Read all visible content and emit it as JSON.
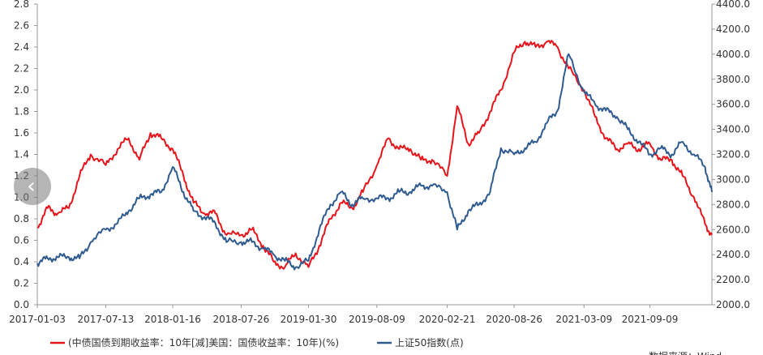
{
  "chart_data": {
    "type": "line",
    "title": "",
    "x_tick_labels": [
      "2017-01-03",
      "2017-07-13",
      "2018-01-16",
      "2018-07-26",
      "2019-01-30",
      "2019-08-09",
      "2020-02-21",
      "2020-08-26",
      "2021-03-09",
      "2021-09-09"
    ],
    "y_left": {
      "ylim": [
        0,
        2.8
      ],
      "ticks": [
        "0.0",
        "0.2",
        "0.4",
        "0.6",
        "0.8",
        "1.0",
        "1.2",
        "1.4",
        "1.6",
        "1.8",
        "2.0",
        "2.2",
        "2.4",
        "2.6",
        "2.8"
      ]
    },
    "y_right": {
      "ylim": [
        2000,
        4400
      ],
      "ticks": [
        "2000.0",
        "2200.0",
        "2400.0",
        "2600.0",
        "2800.0",
        "3000.0",
        "3200.0",
        "3400.0",
        "3600.0",
        "3800.0",
        "4000.0",
        "4200.0",
        "4400.0"
      ]
    },
    "series": [
      {
        "name": "(中债国债到期收益率：10年[减]美国：国债收益率：10年)(%)",
        "axis": "left",
        "color": "#e8141b",
        "x": [
          "2017-01-03",
          "2017-02-01",
          "2017-03-01",
          "2017-04-01",
          "2017-05-01",
          "2017-06-01",
          "2017-07-13",
          "2017-08-15",
          "2017-09-15",
          "2017-10-15",
          "2017-11-15",
          "2017-12-15",
          "2018-01-16",
          "2018-02-15",
          "2018-03-15",
          "2018-04-15",
          "2018-05-15",
          "2018-06-15",
          "2018-07-26",
          "2018-08-25",
          "2018-09-25",
          "2018-10-25",
          "2018-11-25",
          "2018-12-25",
          "2019-01-30",
          "2019-03-01",
          "2019-04-01",
          "2019-05-01",
          "2019-06-01",
          "2019-07-01",
          "2019-08-09",
          "2019-09-10",
          "2019-10-10",
          "2019-11-10",
          "2019-12-10",
          "2020-01-10",
          "2020-02-21",
          "2020-03-20",
          "2020-04-20",
          "2020-05-20",
          "2020-06-20",
          "2020-07-20",
          "2020-08-26",
          "2020-09-25",
          "2020-10-25",
          "2020-11-25",
          "2020-12-25",
          "2021-01-25",
          "2021-03-09",
          "2021-04-09",
          "2021-05-09",
          "2021-06-09",
          "2021-07-09",
          "2021-08-09",
          "2021-09-09",
          "2021-10-09",
          "2021-11-09",
          "2021-12-09",
          "2022-01-10",
          "2022-02-10",
          "2022-03-01"
        ],
        "values": [
          0.72,
          0.9,
          0.85,
          0.9,
          1.2,
          1.4,
          1.3,
          1.45,
          1.55,
          1.35,
          1.6,
          1.55,
          1.45,
          1.2,
          0.95,
          0.85,
          0.85,
          0.65,
          0.65,
          0.7,
          0.55,
          0.4,
          0.35,
          0.48,
          0.35,
          0.55,
          0.8,
          0.95,
          0.9,
          1.05,
          1.3,
          1.55,
          1.45,
          1.45,
          1.35,
          1.35,
          1.2,
          1.85,
          1.5,
          1.6,
          1.8,
          2.0,
          2.35,
          2.45,
          2.4,
          2.45,
          2.4,
          2.2,
          2.0,
          1.75,
          1.55,
          1.45,
          1.5,
          1.45,
          1.5,
          1.35,
          1.35,
          1.2,
          1.0,
          0.75,
          0.65
        ]
      },
      {
        "name": "上证50指数(点)",
        "axis": "right",
        "color": "#2f5b8f",
        "x": [
          "2017-01-03",
          "2017-02-01",
          "2017-03-01",
          "2017-04-01",
          "2017-05-01",
          "2017-06-01",
          "2017-07-13",
          "2017-08-15",
          "2017-09-15",
          "2017-10-15",
          "2017-11-15",
          "2017-12-15",
          "2018-01-16",
          "2018-02-15",
          "2018-03-15",
          "2018-04-15",
          "2018-05-15",
          "2018-06-15",
          "2018-07-26",
          "2018-08-25",
          "2018-09-25",
          "2018-10-25",
          "2018-11-25",
          "2018-12-25",
          "2019-01-30",
          "2019-03-01",
          "2019-04-01",
          "2019-05-01",
          "2019-06-01",
          "2019-07-01",
          "2019-08-09",
          "2019-09-10",
          "2019-10-10",
          "2019-11-10",
          "2019-12-10",
          "2020-01-10",
          "2020-02-21",
          "2020-03-20",
          "2020-04-20",
          "2020-05-20",
          "2020-06-20",
          "2020-07-20",
          "2020-08-26",
          "2020-09-25",
          "2020-10-25",
          "2020-11-25",
          "2020-12-25",
          "2021-01-25",
          "2021-03-09",
          "2021-04-09",
          "2021-05-09",
          "2021-06-09",
          "2021-07-09",
          "2021-08-09",
          "2021-09-09",
          "2021-10-09",
          "2021-11-09",
          "2021-12-09",
          "2022-01-10",
          "2022-02-10",
          "2022-03-01"
        ],
        "values": [
          2330,
          2370,
          2380,
          2380,
          2370,
          2500,
          2600,
          2650,
          2750,
          2850,
          2880,
          2900,
          3100,
          2900,
          2750,
          2700,
          2650,
          2500,
          2500,
          2500,
          2450,
          2400,
          2350,
          2300,
          2350,
          2600,
          2800,
          2900,
          2800,
          2850,
          2850,
          2850,
          2900,
          2900,
          2950,
          2950,
          2900,
          2600,
          2750,
          2800,
          2900,
          3250,
          3200,
          3250,
          3300,
          3450,
          3550,
          4000,
          3700,
          3600,
          3550,
          3500,
          3400,
          3300,
          3200,
          3250,
          3200,
          3300,
          3200,
          3100,
          2900
        ]
      }
    ],
    "legend_position": "bottom",
    "grid": false
  },
  "ui": {
    "nav_arrow_glyph": "‹"
  },
  "watermark_text": "数据来源：Wind"
}
